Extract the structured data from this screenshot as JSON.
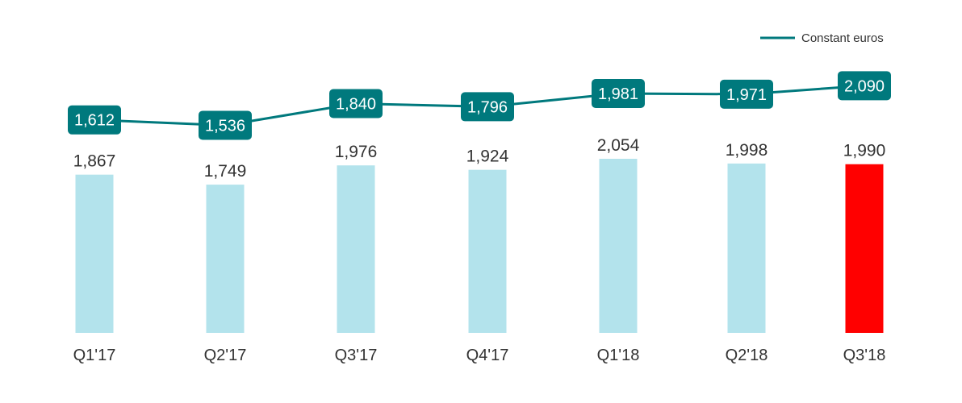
{
  "chart_data": {
    "type": "bar",
    "categories": [
      "Q1'17",
      "Q2'17",
      "Q3'17",
      "Q4'17",
      "Q1'18",
      "Q2'18",
      "Q3'18"
    ],
    "bars": {
      "values": [
        1867,
        1749,
        1976,
        1924,
        2054,
        1998,
        1990
      ],
      "labels": [
        "1,867",
        "1,749",
        "1,976",
        "1,924",
        "2,054",
        "1,998",
        "1,990"
      ],
      "color": "#b3e3ec",
      "highlight_color": "#ff0000",
      "highlight_index": 6
    },
    "line": {
      "name": "Constant euros",
      "values": [
        1612,
        1536,
        1840,
        1796,
        1981,
        1971,
        2090
      ],
      "labels": [
        "1,612",
        "1,536",
        "1,840",
        "1,796",
        "1,981",
        "1,971",
        "2,090"
      ],
      "color": "#00797d"
    },
    "legend": {
      "position": "top-right"
    },
    "grid": false,
    "title": "",
    "xlabel": "",
    "ylabel": ""
  }
}
